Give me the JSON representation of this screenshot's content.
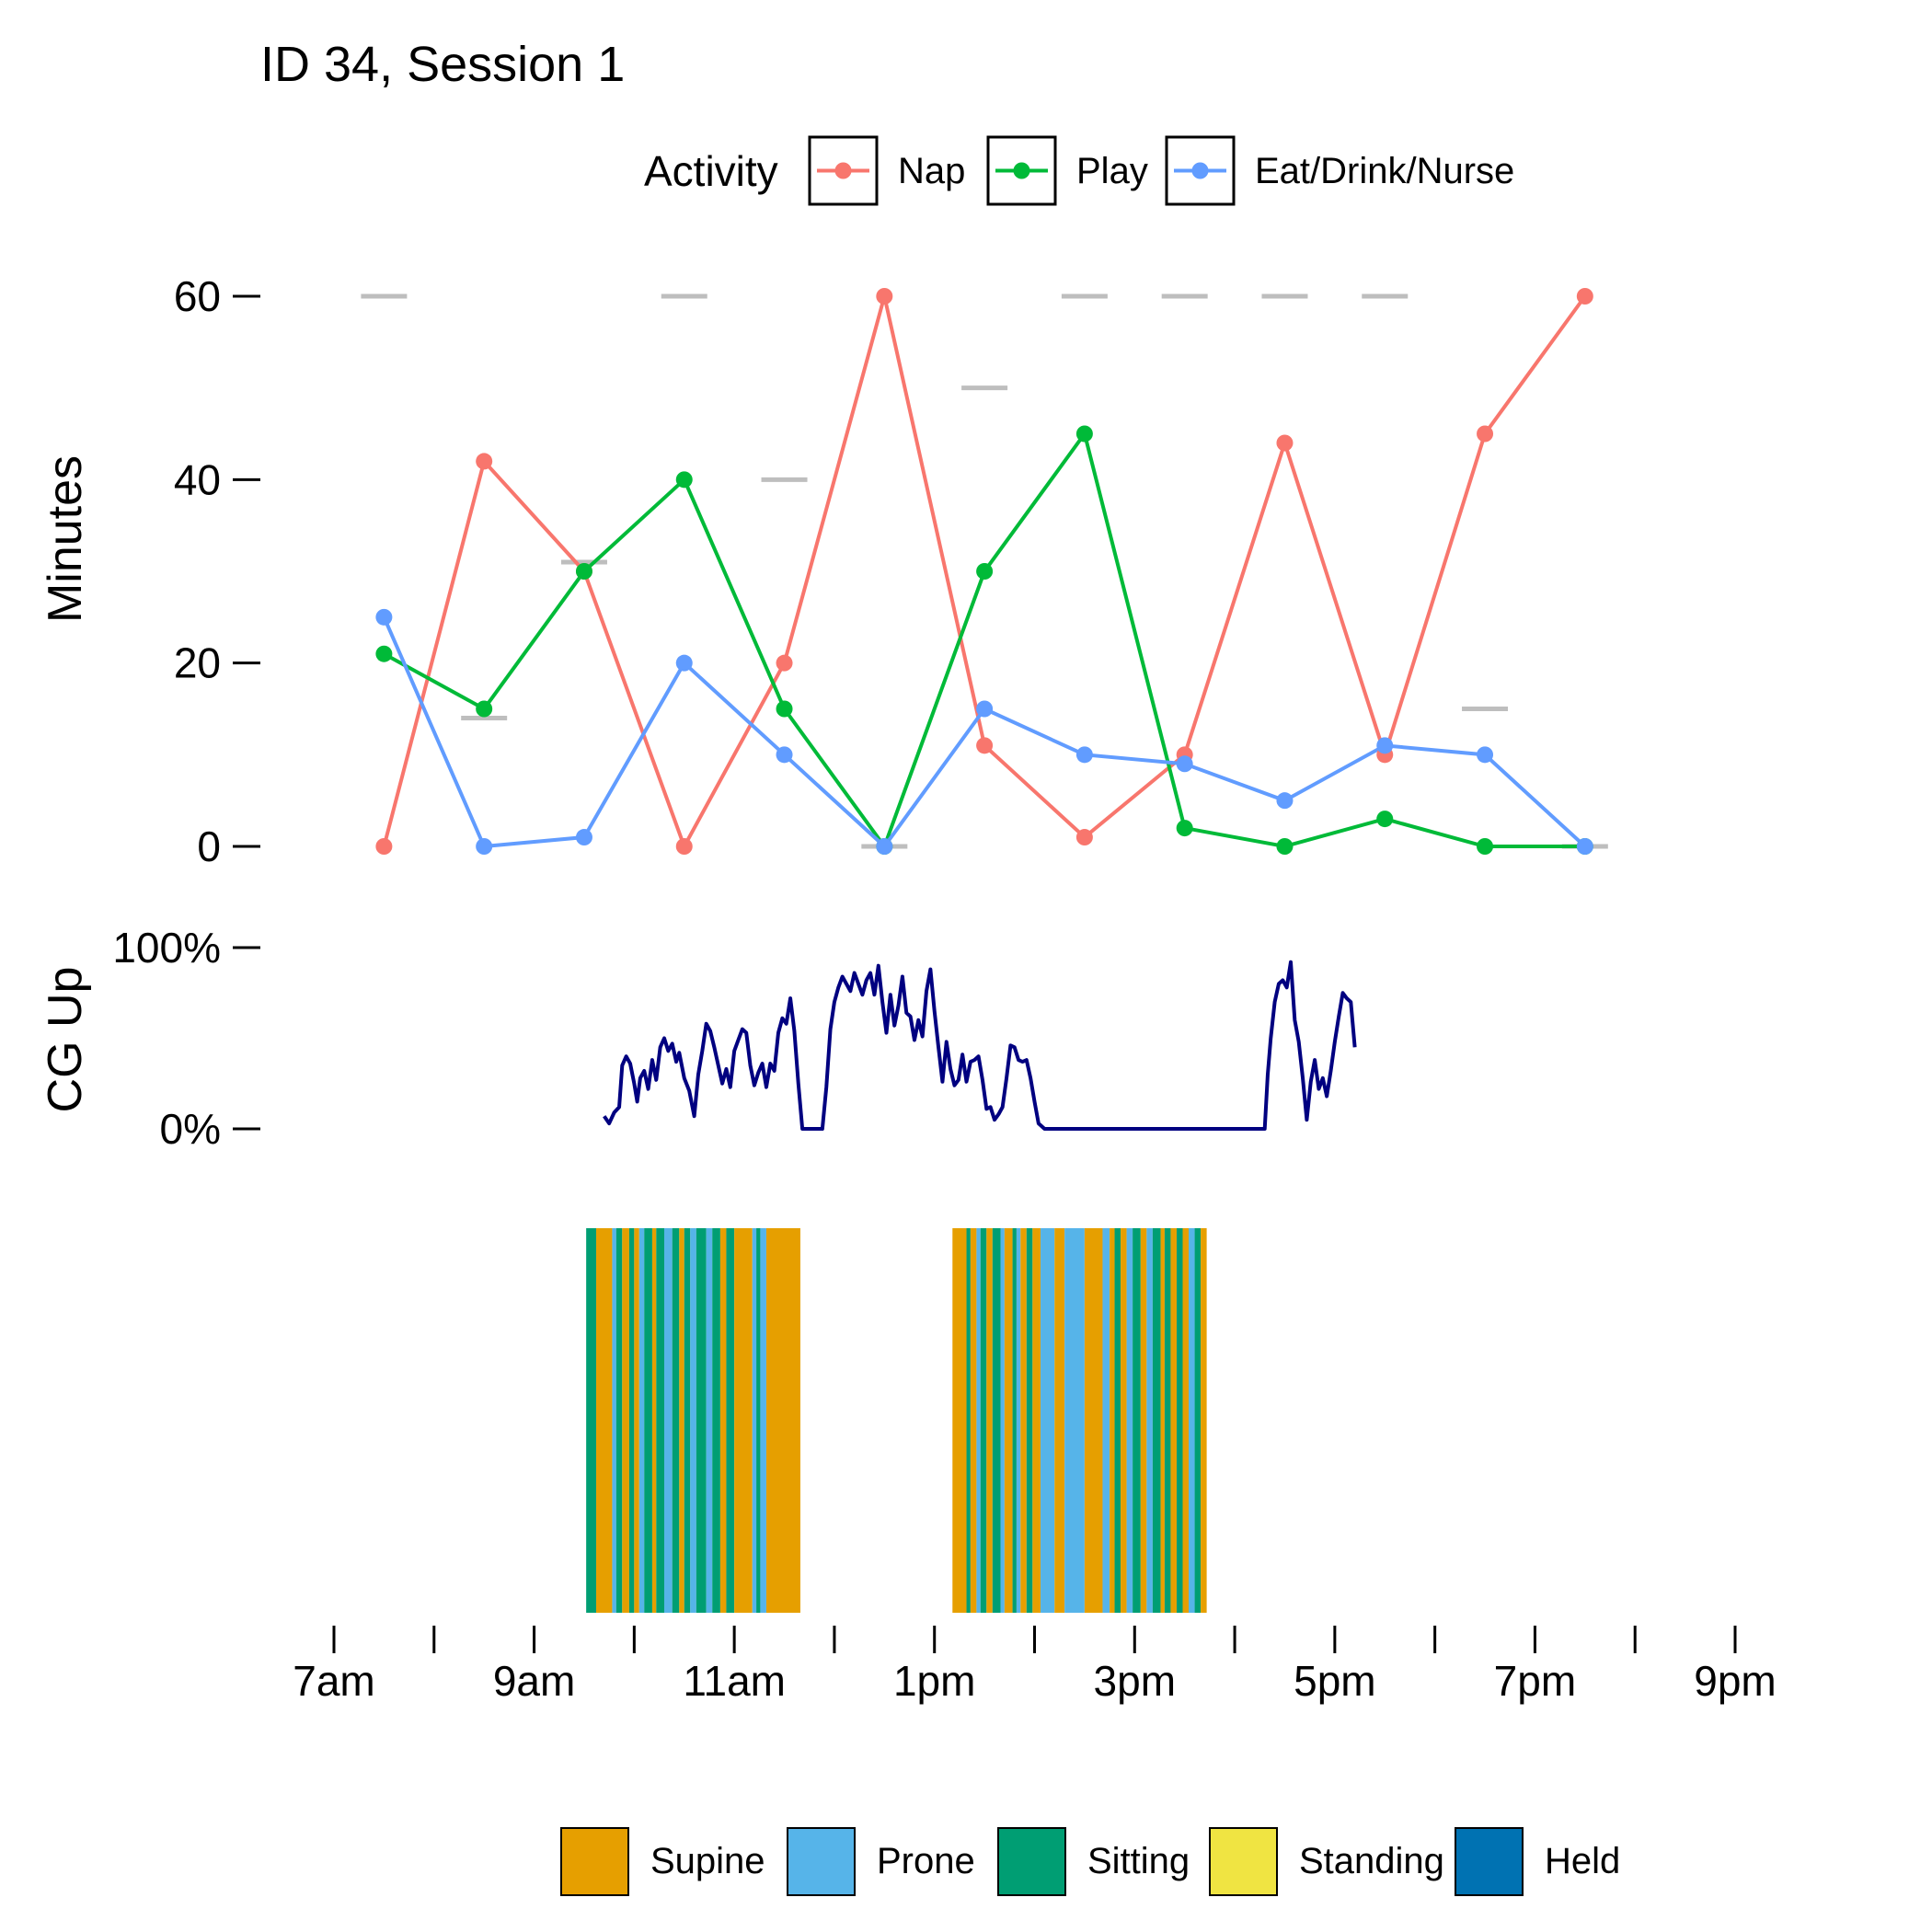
{
  "chart_data": [
    {
      "type": "line",
      "title": "ID 34, Session 1",
      "ylabel": "Minutes",
      "ylim": [
        0,
        60
      ],
      "yticks": [
        0,
        20,
        40,
        60
      ],
      "legend": {
        "title": "Activity",
        "position": "top",
        "entries": [
          "Nap",
          "Play",
          "Eat/Drink/Nurse"
        ]
      },
      "x_hours": [
        7.5,
        8.5,
        9.5,
        10.5,
        11.5,
        12.5,
        13.5,
        14.5,
        15.5,
        16.5,
        17.5,
        18.5,
        19.5
      ],
      "series": [
        {
          "name": "Nap",
          "color": "#F8766D",
          "values": [
            0,
            42,
            30,
            0,
            20,
            60,
            11,
            1,
            10,
            44,
            10,
            45,
            60
          ]
        },
        {
          "name": "Play",
          "color": "#00BA38",
          "values": [
            21,
            15,
            30,
            40,
            15,
            0,
            30,
            45,
            2,
            0,
            3,
            0,
            0
          ]
        },
        {
          "name": "Eat/Drink/Nurse",
          "color": "#619CFF",
          "values": [
            25,
            0,
            1,
            20,
            10,
            0,
            15,
            10,
            9,
            5,
            11,
            10,
            0
          ]
        }
      ],
      "reference_marks": {
        "color": "#BEBEBE",
        "x_hours": [
          7.5,
          8.5,
          9.5,
          10.5,
          11.5,
          12.5,
          13.5,
          14.5,
          15.5,
          16.5,
          17.5,
          18.5,
          19.5
        ],
        "values": [
          60,
          14,
          31,
          60,
          40,
          0,
          50,
          60,
          60,
          60,
          60,
          15,
          0
        ]
      }
    },
    {
      "type": "line",
      "ylabel": "CG Up",
      "ylim": [
        0,
        100
      ],
      "ytick_labels": [
        "0%",
        "100%"
      ],
      "color": "#000080",
      "series": [
        {
          "name": "CG Up",
          "points": [
            [
              9.7,
              7
            ],
            [
              9.75,
              3
            ],
            [
              9.8,
              9
            ],
            [
              9.85,
              12
            ],
            [
              9.88,
              35
            ],
            [
              9.92,
              40
            ],
            [
              9.96,
              36
            ],
            [
              10.0,
              25
            ],
            [
              10.03,
              15
            ],
            [
              10.06,
              28
            ],
            [
              10.1,
              32
            ],
            [
              10.14,
              22
            ],
            [
              10.18,
              38
            ],
            [
              10.22,
              27
            ],
            [
              10.26,
              45
            ],
            [
              10.3,
              50
            ],
            [
              10.34,
              43
            ],
            [
              10.38,
              47
            ],
            [
              10.42,
              37
            ],
            [
              10.45,
              42
            ],
            [
              10.5,
              28
            ],
            [
              10.55,
              21
            ],
            [
              10.6,
              7
            ],
            [
              10.64,
              30
            ],
            [
              10.68,
              43
            ],
            [
              10.72,
              58
            ],
            [
              10.76,
              54
            ],
            [
              10.8,
              45
            ],
            [
              10.84,
              35
            ],
            [
              10.88,
              25
            ],
            [
              10.92,
              33
            ],
            [
              10.96,
              23
            ],
            [
              11.0,
              43
            ],
            [
              11.04,
              49
            ],
            [
              11.08,
              55
            ],
            [
              11.12,
              53
            ],
            [
              11.16,
              35
            ],
            [
              11.2,
              24
            ],
            [
              11.24,
              31
            ],
            [
              11.28,
              36
            ],
            [
              11.32,
              23
            ],
            [
              11.36,
              36
            ],
            [
              11.4,
              32
            ],
            [
              11.44,
              53
            ],
            [
              11.48,
              61
            ],
            [
              11.52,
              58
            ],
            [
              11.56,
              72
            ],
            [
              11.6,
              54
            ],
            [
              11.64,
              25
            ],
            [
              11.68,
              0
            ],
            [
              11.78,
              0
            ],
            [
              11.88,
              0
            ],
            [
              11.92,
              23
            ],
            [
              11.96,
              55
            ],
            [
              12.0,
              70
            ],
            [
              12.04,
              78
            ],
            [
              12.08,
              84
            ],
            [
              12.12,
              80
            ],
            [
              12.16,
              76
            ],
            [
              12.2,
              86
            ],
            [
              12.24,
              80
            ],
            [
              12.28,
              74
            ],
            [
              12.32,
              82
            ],
            [
              12.36,
              86
            ],
            [
              12.4,
              74
            ],
            [
              12.44,
              90
            ],
            [
              12.48,
              70
            ],
            [
              12.52,
              53
            ],
            [
              12.56,
              74
            ],
            [
              12.6,
              57
            ],
            [
              12.64,
              68
            ],
            [
              12.68,
              84
            ],
            [
              12.72,
              64
            ],
            [
              12.76,
              62
            ],
            [
              12.8,
              49
            ],
            [
              12.84,
              60
            ],
            [
              12.88,
              51
            ],
            [
              12.92,
              76
            ],
            [
              12.96,
              88
            ],
            [
              13.0,
              65
            ],
            [
              13.04,
              45
            ],
            [
              13.08,
              26
            ],
            [
              13.12,
              48
            ],
            [
              13.16,
              33
            ],
            [
              13.2,
              24
            ],
            [
              13.24,
              27
            ],
            [
              13.28,
              41
            ],
            [
              13.32,
              26
            ],
            [
              13.36,
              37
            ],
            [
              13.4,
              38
            ],
            [
              13.44,
              40
            ],
            [
              13.48,
              27
            ],
            [
              13.52,
              11
            ],
            [
              13.56,
              12
            ],
            [
              13.6,
              5
            ],
            [
              13.64,
              8
            ],
            [
              13.68,
              12
            ],
            [
              13.72,
              28
            ],
            [
              13.76,
              46
            ],
            [
              13.8,
              45
            ],
            [
              13.84,
              38
            ],
            [
              13.88,
              37
            ],
            [
              13.92,
              38
            ],
            [
              13.96,
              28
            ],
            [
              14.0,
              15
            ],
            [
              14.04,
              3
            ],
            [
              14.1,
              0
            ],
            [
              14.2,
              0
            ],
            [
              14.4,
              0
            ],
            [
              14.6,
              0
            ],
            [
              14.8,
              0
            ],
            [
              15.0,
              0
            ],
            [
              15.2,
              0
            ],
            [
              15.4,
              0
            ],
            [
              15.6,
              0
            ],
            [
              15.8,
              0
            ],
            [
              16.0,
              0
            ],
            [
              16.2,
              0
            ],
            [
              16.3,
              0
            ],
            [
              16.33,
              30
            ],
            [
              16.36,
              50
            ],
            [
              16.4,
              70
            ],
            [
              16.44,
              80
            ],
            [
              16.48,
              82
            ],
            [
              16.52,
              78
            ],
            [
              16.56,
              92
            ],
            [
              16.6,
              60
            ],
            [
              16.64,
              48
            ],
            [
              16.68,
              28
            ],
            [
              16.72,
              5
            ],
            [
              16.76,
              26
            ],
            [
              16.8,
              38
            ],
            [
              16.84,
              22
            ],
            [
              16.88,
              28
            ],
            [
              16.92,
              18
            ],
            [
              16.96,
              32
            ],
            [
              17.0,
              48
            ],
            [
              17.04,
              62
            ],
            [
              17.08,
              75
            ],
            [
              17.12,
              72
            ],
            [
              17.16,
              70
            ],
            [
              17.2,
              45
            ]
          ]
        }
      ]
    },
    {
      "type": "timeline",
      "legend": {
        "position": "bottom",
        "entries": [
          {
            "label": "Supine",
            "color": "#E69F00"
          },
          {
            "label": "Prone",
            "color": "#56B4E9"
          },
          {
            "label": "Sitting",
            "color": "#009E73"
          },
          {
            "label": "Standing",
            "color": "#F0E442"
          },
          {
            "label": "Held",
            "color": "#0072B2"
          }
        ]
      },
      "segments": [
        [
          9.52,
          9.62,
          "Sitting"
        ],
        [
          9.62,
          9.78,
          "Supine"
        ],
        [
          9.78,
          9.82,
          "Prone"
        ],
        [
          9.82,
          9.88,
          "Sitting"
        ],
        [
          9.88,
          9.95,
          "Supine"
        ],
        [
          9.95,
          10.0,
          "Sitting"
        ],
        [
          10.0,
          10.05,
          "Supine"
        ],
        [
          10.05,
          10.1,
          "Prone"
        ],
        [
          10.1,
          10.18,
          "Sitting"
        ],
        [
          10.18,
          10.22,
          "Supine"
        ],
        [
          10.22,
          10.3,
          "Sitting"
        ],
        [
          10.3,
          10.38,
          "Prone"
        ],
        [
          10.38,
          10.45,
          "Sitting"
        ],
        [
          10.45,
          10.5,
          "Supine"
        ],
        [
          10.5,
          10.56,
          "Sitting"
        ],
        [
          10.56,
          10.62,
          "Prone"
        ],
        [
          10.62,
          10.72,
          "Sitting"
        ],
        [
          10.72,
          10.78,
          "Prone"
        ],
        [
          10.78,
          10.86,
          "Sitting"
        ],
        [
          10.86,
          10.92,
          "Supine"
        ],
        [
          10.92,
          11.0,
          "Sitting"
        ],
        [
          11.0,
          11.18,
          "Supine"
        ],
        [
          11.18,
          11.22,
          "Prone"
        ],
        [
          11.22,
          11.26,
          "Sitting"
        ],
        [
          11.26,
          11.32,
          "Prone"
        ],
        [
          11.32,
          11.66,
          "Supine"
        ],
        [
          13.18,
          13.32,
          "Supine"
        ],
        [
          13.32,
          13.36,
          "Sitting"
        ],
        [
          13.36,
          13.42,
          "Supine"
        ],
        [
          13.42,
          13.46,
          "Prone"
        ],
        [
          13.46,
          13.52,
          "Sitting"
        ],
        [
          13.52,
          13.58,
          "Supine"
        ],
        [
          13.58,
          13.66,
          "Sitting"
        ],
        [
          13.66,
          13.7,
          "Prone"
        ],
        [
          13.7,
          13.78,
          "Supine"
        ],
        [
          13.78,
          13.82,
          "Sitting"
        ],
        [
          13.82,
          13.86,
          "Prone"
        ],
        [
          13.86,
          13.92,
          "Supine"
        ],
        [
          13.92,
          13.98,
          "Sitting"
        ],
        [
          13.98,
          14.06,
          "Supine"
        ],
        [
          14.06,
          14.2,
          "Prone"
        ],
        [
          14.2,
          14.3,
          "Supine"
        ],
        [
          14.3,
          14.5,
          "Prone"
        ],
        [
          14.5,
          14.68,
          "Supine"
        ],
        [
          14.68,
          14.75,
          "Prone"
        ],
        [
          14.75,
          14.8,
          "Supine"
        ],
        [
          14.8,
          14.86,
          "Sitting"
        ],
        [
          14.86,
          14.92,
          "Supine"
        ],
        [
          14.92,
          14.98,
          "Prone"
        ],
        [
          14.98,
          15.06,
          "Sitting"
        ],
        [
          15.06,
          15.12,
          "Supine"
        ],
        [
          15.12,
          15.18,
          "Prone"
        ],
        [
          15.18,
          15.26,
          "Sitting"
        ],
        [
          15.26,
          15.3,
          "Supine"
        ],
        [
          15.3,
          15.36,
          "Sitting"
        ],
        [
          15.36,
          15.42,
          "Supine"
        ],
        [
          15.42,
          15.48,
          "Sitting"
        ],
        [
          15.48,
          15.54,
          "Supine"
        ],
        [
          15.54,
          15.6,
          "Prone"
        ],
        [
          15.6,
          15.66,
          "Sitting"
        ],
        [
          15.66,
          15.72,
          "Supine"
        ]
      ],
      "x_ticks_hours": [
        7,
        8,
        9,
        10,
        11,
        12,
        13,
        14,
        15,
        16,
        17,
        18,
        19,
        20,
        21
      ],
      "x_tick_labels": [
        "7am",
        "9am",
        "11am",
        "1pm",
        "3pm",
        "5pm",
        "7pm",
        "9pm"
      ]
    }
  ]
}
